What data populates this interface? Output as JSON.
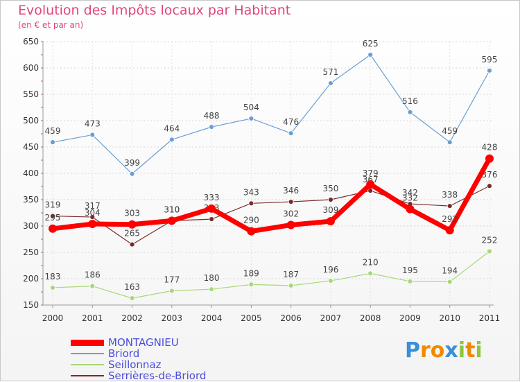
{
  "chart_data": {
    "type": "line",
    "title": "Evolution des Impôts locaux par Habitant",
    "subtitle": "(en € et par an)",
    "x": [
      "2000",
      "2001",
      "2002",
      "2003",
      "2004",
      "2005",
      "2006",
      "2007",
      "2008",
      "2009",
      "2010",
      "2011"
    ],
    "ylim": [
      150,
      650
    ],
    "yticks": [
      150,
      200,
      250,
      300,
      350,
      400,
      450,
      500,
      550,
      600,
      650
    ],
    "series": [
      {
        "name": "MONTAGNIEU",
        "color": "#ff0000",
        "values": [
          295,
          304,
          303,
          310,
          333,
          290,
          302,
          309,
          379,
          332,
          292,
          428
        ],
        "labels": [
          "295",
          "304",
          "303",
          "310",
          "333",
          "290",
          "302",
          "309",
          "379",
          "332",
          "292",
          "428"
        ]
      },
      {
        "name": "Briord",
        "color": "#6a9fd4",
        "values": [
          459,
          473,
          399,
          464,
          488,
          504,
          476,
          571,
          625,
          516,
          459,
          595
        ],
        "labels": [
          "459",
          "473",
          "399",
          "464",
          "488",
          "504",
          "476",
          "571",
          "625",
          "516",
          "459",
          "595"
        ]
      },
      {
        "name": "Seillonnaz",
        "color": "#a8d878",
        "values": [
          183,
          186,
          163,
          177,
          180,
          189,
          187,
          196,
          210,
          195,
          194,
          252
        ],
        "labels": [
          "183",
          "186",
          "163",
          "177",
          "180",
          "189",
          "187",
          "196",
          "210",
          "195",
          "194",
          "252"
        ]
      },
      {
        "name": "Serrières-de-Briord",
        "color": "#7a2a2a",
        "values": [
          319,
          317,
          265,
          310,
          313,
          343,
          346,
          350,
          367,
          342,
          338,
          376
        ],
        "labels": [
          "319",
          "317",
          "265",
          "310",
          "313",
          "343",
          "346",
          "350",
          "367",
          "342",
          "338",
          "376"
        ]
      }
    ],
    "legend_position": "bottom-left"
  },
  "logo": {
    "text": "Proxiti",
    "letters": [
      "P",
      "r",
      "o",
      "x",
      "i",
      "t",
      "i"
    ],
    "colors": [
      "#3a8fd8",
      "#f08a00",
      "#f08a00",
      "#3a8fd8",
      "#8cc63f",
      "#f08a00",
      "#8cc63f"
    ]
  }
}
